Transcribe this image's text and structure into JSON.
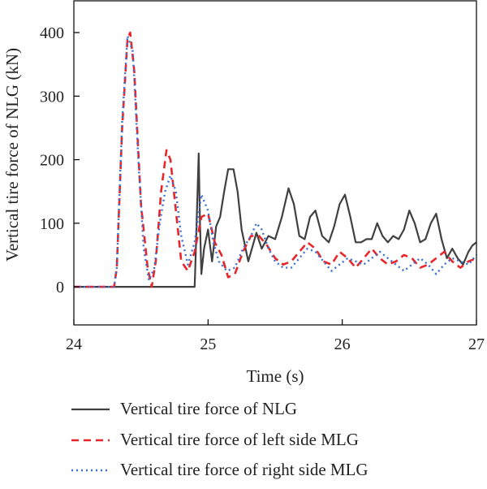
{
  "chart_data": {
    "type": "line",
    "xlabel": "Time (s)",
    "ylabel": "Vertical tire force of NLG (kN)",
    "xlim": [
      24,
      27
    ],
    "ylim": [
      -60,
      450
    ],
    "xticks": [
      24,
      25,
      26,
      27
    ],
    "yticks": [
      0,
      100,
      200,
      300,
      400
    ],
    "grid": false,
    "legend_position": "bottom",
    "series": [
      {
        "name": "Vertical tire force of NLG",
        "color": "#404040",
        "style": "solid",
        "x": [
          24.0,
          24.9,
          24.905,
          24.93,
          24.94,
          24.95,
          24.97,
          25.0,
          25.03,
          25.06,
          25.09,
          25.12,
          25.15,
          25.19,
          25.22,
          25.25,
          25.3,
          25.36,
          25.4,
          25.45,
          25.5,
          25.55,
          25.6,
          25.64,
          25.68,
          25.72,
          25.76,
          25.8,
          25.85,
          25.9,
          25.94,
          25.98,
          26.02,
          26.06,
          26.1,
          26.14,
          26.18,
          26.22,
          26.26,
          26.3,
          26.34,
          26.38,
          26.42,
          26.46,
          26.5,
          26.54,
          26.58,
          26.62,
          26.66,
          26.7,
          26.74,
          26.78,
          26.82,
          26.86,
          26.9,
          26.94,
          26.97,
          27.0
        ],
        "y": [
          0,
          0,
          30,
          210,
          100,
          20,
          60,
          90,
          40,
          95,
          110,
          150,
          185,
          185,
          150,
          90,
          40,
          85,
          60,
          80,
          75,
          110,
          155,
          130,
          80,
          75,
          110,
          120,
          80,
          70,
          95,
          130,
          145,
          110,
          70,
          70,
          75,
          75,
          100,
          80,
          70,
          80,
          75,
          90,
          120,
          100,
          70,
          75,
          100,
          115,
          75,
          45,
          60,
          45,
          35,
          55,
          65,
          70
        ]
      },
      {
        "name": "Vertical tire force of left side MLG",
        "color": "#e8262a",
        "style": "dashed",
        "x": [
          24.0,
          24.3,
          24.32,
          24.36,
          24.4,
          24.42,
          24.45,
          24.5,
          24.55,
          24.58,
          24.61,
          24.65,
          24.69,
          24.72,
          24.76,
          24.8,
          24.85,
          24.9,
          24.95,
          25.0,
          25.05,
          25.1,
          25.15,
          25.2,
          25.26,
          25.32,
          25.38,
          25.44,
          25.5,
          25.56,
          25.62,
          25.68,
          25.74,
          25.8,
          25.86,
          25.92,
          25.98,
          26.04,
          26.1,
          26.16,
          26.22,
          26.28,
          26.34,
          26.4,
          26.46,
          26.52,
          26.58,
          26.64,
          26.7,
          26.76,
          26.82,
          26.88,
          26.94,
          27.0
        ],
        "y": [
          0,
          0,
          30,
          250,
          390,
          400,
          340,
          130,
          30,
          0,
          40,
          150,
          215,
          200,
          120,
          40,
          25,
          55,
          110,
          115,
          70,
          50,
          15,
          20,
          55,
          80,
          80,
          65,
          45,
          35,
          40,
          55,
          70,
          60,
          40,
          35,
          55,
          45,
          30,
          45,
          60,
          45,
          35,
          40,
          50,
          45,
          30,
          35,
          45,
          55,
          40,
          30,
          40,
          45
        ]
      },
      {
        "name": "Vertical tire force of right side MLG",
        "color": "#3b6fd1",
        "style": "dotted",
        "x": [
          24.0,
          24.3,
          24.32,
          24.36,
          24.4,
          24.44,
          24.48,
          24.52,
          24.56,
          24.6,
          24.64,
          24.68,
          24.72,
          24.76,
          24.8,
          24.85,
          24.9,
          24.95,
          25.0,
          25.04,
          25.08,
          25.14,
          25.2,
          25.26,
          25.32,
          25.36,
          25.4,
          25.45,
          25.5,
          25.56,
          25.62,
          25.68,
          25.74,
          25.8,
          25.86,
          25.92,
          25.98,
          26.04,
          26.1,
          26.16,
          26.22,
          26.28,
          26.34,
          26.4,
          26.46,
          26.52,
          26.58,
          26.64,
          26.7,
          26.76,
          26.82,
          26.88,
          26.94,
          27.0
        ],
        "y": [
          0,
          0,
          30,
          260,
          395,
          370,
          200,
          60,
          10,
          30,
          100,
          150,
          175,
          150,
          80,
          35,
          70,
          145,
          120,
          70,
          40,
          25,
          30,
          60,
          80,
          100,
          90,
          60,
          40,
          30,
          30,
          45,
          60,
          55,
          40,
          25,
          35,
          45,
          40,
          35,
          45,
          55,
          45,
          35,
          25,
          35,
          45,
          35,
          20,
          35,
          45,
          40,
          35,
          50
        ]
      }
    ]
  }
}
